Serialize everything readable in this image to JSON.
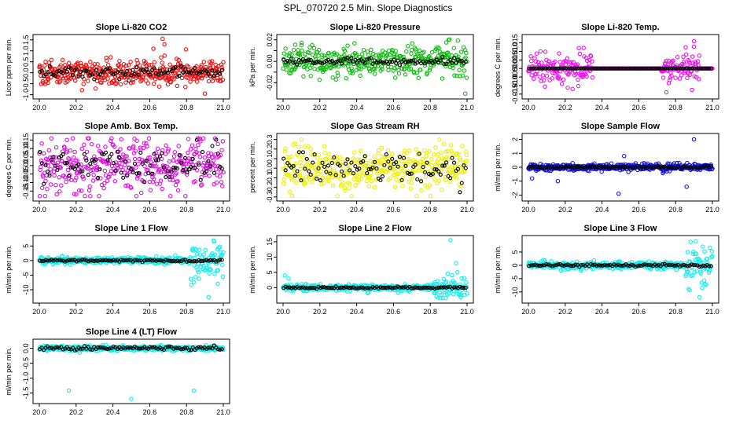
{
  "figure_title": "SPL_070720  2.5 Min. Slope Diagnostics",
  "chart_data": [
    {
      "type": "scatter",
      "title": "Slope Li-820 CO2",
      "ylabel": "Licor ppm per min.",
      "xlim": [
        20.0,
        21.0
      ],
      "ylim": [
        -1.05,
        1.6
      ],
      "x_ticks": [
        "20.0",
        "20.2",
        "20.4",
        "20.6",
        "20.8",
        "21.0"
      ],
      "y_ticks": [
        -1.0,
        -0.5,
        0.0,
        0.5,
        1.0,
        1.5
      ],
      "y_tick_labels": [
        "-1.0",
        "-0.5",
        "0.0",
        "0.5",
        "1.0",
        "1.5"
      ],
      "series_color": "#ee1111",
      "overlay_color": "#000000",
      "spread": 0.33,
      "overlay_spread": 0.18,
      "outliers": [
        {
          "x": 20.67,
          "y": 1.55
        },
        {
          "x": 20.68,
          "y": 1.3
        },
        {
          "x": 20.9,
          "y": -0.95
        },
        {
          "x": 20.62,
          "y": 1.1
        }
      ]
    },
    {
      "type": "scatter",
      "title": "Slope Li-820 Pressure",
      "ylabel": "kPa per min.",
      "xlim": [
        20.0,
        21.0
      ],
      "ylim": [
        -0.032,
        0.022
      ],
      "x_ticks": [
        "20.0",
        "20.2",
        "20.4",
        "20.6",
        "20.8",
        "21.0"
      ],
      "y_ticks": [
        -0.02,
        -0.01,
        0.0,
        0.01,
        0.02
      ],
      "y_tick_labels": [
        "-0.02",
        "",
        "0.00",
        "",
        "0.02"
      ],
      "series_color": "#11bb11",
      "overlay_color": "#000000",
      "spread": 0.008,
      "overlay_spread": 0.002,
      "outliers": [
        {
          "x": 20.99,
          "y": -0.03
        },
        {
          "x": 20.1,
          "y": 0.015
        },
        {
          "x": 20.27,
          "y": -0.015
        },
        {
          "x": 20.9,
          "y": 0.02
        }
      ]
    },
    {
      "type": "scatter",
      "title": "Slope Li-820 Temp.",
      "ylabel": "degrees C per min.",
      "xlim": [
        20.0,
        21.0
      ],
      "ylim": [
        -0.016,
        0.018
      ],
      "x_ticks": [
        "20.0",
        "20.2",
        "20.4",
        "20.6",
        "20.8",
        "21.0"
      ],
      "y_ticks": [
        -0.015,
        -0.01,
        -0.005,
        0.0,
        0.005,
        0.01,
        0.015
      ],
      "y_tick_labels": [
        "-0.015",
        "-0.010",
        "-0.005",
        "0.000",
        "0.005",
        "0.010",
        "0.015"
      ],
      "series_color": "#ee11ee",
      "overlay_color": "#000000",
      "spread": 0.0,
      "overlay_spread": 0.0,
      "active_windows": [
        [
          20.0,
          20.35,
          0.005
        ],
        [
          20.72,
          20.93,
          0.005
        ]
      ],
      "outliers": [
        {
          "x": 20.9,
          "y": 0.016
        },
        {
          "x": 20.24,
          "y": -0.012
        },
        {
          "x": 20.75,
          "y": -0.014
        },
        {
          "x": 20.3,
          "y": 0.012
        }
      ]
    },
    {
      "type": "scatter",
      "title": "Slope Amb. Box Temp.",
      "ylabel": "degrees C per min.",
      "xlim": [
        20.0,
        21.0
      ],
      "ylim": [
        -0.19,
        0.17
      ],
      "x_ticks": [
        "20.0",
        "20.2",
        "20.4",
        "20.6",
        "20.8",
        "21.0"
      ],
      "y_ticks": [
        -0.15,
        -0.1,
        -0.05,
        0.0,
        0.05,
        0.1,
        0.15
      ],
      "y_tick_labels": [
        "-0.15",
        "-0.10",
        "-0.05",
        "0.00",
        "0.05",
        "0.10",
        "0.15"
      ],
      "series_color": "#dd11dd",
      "overlay_color": "#000000",
      "spread": 0.09,
      "overlay_spread": 0.06,
      "outliers": [
        {
          "x": 20.2,
          "y": -0.17
        },
        {
          "x": 20.87,
          "y": 0.16
        },
        {
          "x": 20.15,
          "y": 0.15
        }
      ]
    },
    {
      "type": "scatter",
      "title": "Slope Gas Stream RH",
      "ylabel": "percent per min.",
      "xlim": [
        20.0,
        21.0
      ],
      "ylim": [
        -0.31,
        0.33
      ],
      "x_ticks": [
        "20.0",
        "20.2",
        "20.4",
        "20.6",
        "20.8",
        "21.0"
      ],
      "y_ticks": [
        -0.3,
        -0.2,
        -0.1,
        0.0,
        0.1,
        0.2,
        0.3
      ],
      "y_tick_labels": [
        "-0.3",
        "-0.2",
        "-0.1",
        "0.0",
        "0.1",
        "0.2",
        "0.3"
      ],
      "series_color": "#eeee00",
      "overlay_color": "#000000",
      "spread": 0.14,
      "overlay_spread": 0.1,
      "outliers": [
        {
          "x": 20.1,
          "y": 0.3
        },
        {
          "x": 20.85,
          "y": 0.3
        },
        {
          "x": 20.05,
          "y": -0.29
        }
      ]
    },
    {
      "type": "scatter",
      "title": "Slope Sample Flow",
      "ylabel": "ml/min per min.",
      "xlim": [
        20.0,
        21.0
      ],
      "ylim": [
        -2.2,
        2.2
      ],
      "x_ticks": [
        "20.0",
        "20.2",
        "20.4",
        "20.6",
        "20.8",
        "21.0"
      ],
      "y_ticks": [
        -2,
        -1,
        0,
        1,
        2
      ],
      "y_tick_labels": [
        "-2",
        "-1",
        "0",
        "1",
        "2"
      ],
      "series_color": "#1111dd",
      "overlay_color": "#000000",
      "spread": 0.15,
      "overlay_spread": 0.05,
      "outliers": [
        {
          "x": 20.9,
          "y": 2.0
        },
        {
          "x": 20.49,
          "y": -1.9
        },
        {
          "x": 20.86,
          "y": -1.4
        },
        {
          "x": 20.52,
          "y": 0.8
        },
        {
          "x": 20.16,
          "y": -1.0
        },
        {
          "x": 20.02,
          "y": -0.8
        }
      ]
    },
    {
      "type": "scatter",
      "title": "Slope Line 1 Flow",
      "ylabel": "ml/min per min.",
      "xlim": [
        20.0,
        21.0
      ],
      "ylim": [
        -13.5,
        7.5
      ],
      "x_ticks": [
        "20.0",
        "20.2",
        "20.4",
        "20.6",
        "20.8",
        "21.0"
      ],
      "y_ticks": [
        -10,
        -5,
        0,
        5
      ],
      "y_tick_labels": [
        "-10",
        "-5",
        "0",
        "5"
      ],
      "series_color": "#11eeee",
      "overlay_color": "#000000",
      "spread": 0.7,
      "overlay_spread": 0.2,
      "active_windows": [
        [
          20.82,
          21.0,
          4.0
        ]
      ],
      "outliers": [
        {
          "x": 20.92,
          "y": -12.5
        },
        {
          "x": 20.95,
          "y": 6.5
        },
        {
          "x": 20.97,
          "y": -8.0
        }
      ]
    },
    {
      "type": "scatter",
      "title": "Slope Line 2 Flow",
      "ylabel": "ml/min per min.",
      "xlim": [
        20.0,
        21.0
      ],
      "ylim": [
        -4.0,
        16.0
      ],
      "x_ticks": [
        "20.0",
        "20.2",
        "20.4",
        "20.6",
        "20.8",
        "21.0"
      ],
      "y_ticks": [
        0,
        5,
        10,
        15
      ],
      "y_tick_labels": [
        "0",
        "5",
        "10",
        "15"
      ],
      "series_color": "#11eeee",
      "overlay_color": "#000000",
      "spread": 0.6,
      "overlay_spread": 0.2,
      "active_windows": [
        [
          20.82,
          21.0,
          2.5
        ]
      ],
      "outliers": [
        {
          "x": 20.91,
          "y": 15.5
        },
        {
          "x": 20.94,
          "y": 8.0
        },
        {
          "x": 20.01,
          "y": 4.0
        },
        {
          "x": 20.03,
          "y": 3.0
        }
      ]
    },
    {
      "type": "scatter",
      "title": "Slope Line 3 Flow",
      "ylabel": "ml/min per min.",
      "xlim": [
        20.0,
        21.0
      ],
      "ylim": [
        -13.0,
        10.0
      ],
      "x_ticks": [
        "20.0",
        "20.2",
        "20.4",
        "20.6",
        "20.8",
        "21.0"
      ],
      "y_ticks": [
        -10,
        -5,
        0,
        5
      ],
      "y_tick_labels": [
        "-10",
        "-5",
        "0",
        "5"
      ],
      "series_color": "#11eeee",
      "overlay_color": "#000000",
      "spread": 0.8,
      "overlay_spread": 0.3,
      "active_windows": [
        [
          20.85,
          21.0,
          4.0
        ]
      ],
      "outliers": [
        {
          "x": 20.93,
          "y": -12.0
        },
        {
          "x": 20.91,
          "y": 9.0
        },
        {
          "x": 20.96,
          "y": -7.0
        }
      ]
    },
    {
      "type": "scatter",
      "title": "Slope Line 4 (LT) Flow",
      "ylabel": "ml/min per min.",
      "xlim": [
        20.0,
        21.0
      ],
      "ylim": [
        -1.75,
        0.2
      ],
      "x_ticks": [
        "20.0",
        "20.2",
        "20.4",
        "20.6",
        "20.8",
        "21.0"
      ],
      "y_ticks": [
        -1.5,
        -1.0,
        -0.5,
        0.0
      ],
      "y_tick_labels": [
        "-1.5",
        "-1.0",
        "-0.5",
        "0.0"
      ],
      "series_color": "#11eeee",
      "overlay_color": "#000000",
      "spread": 0.05,
      "overlay_spread": 0.04,
      "outliers": [
        {
          "x": 20.16,
          "y": -1.42
        },
        {
          "x": 20.84,
          "y": -1.42
        },
        {
          "x": 20.5,
          "y": -1.7
        },
        {
          "x": 20.22,
          "y": -0.15
        }
      ]
    }
  ]
}
